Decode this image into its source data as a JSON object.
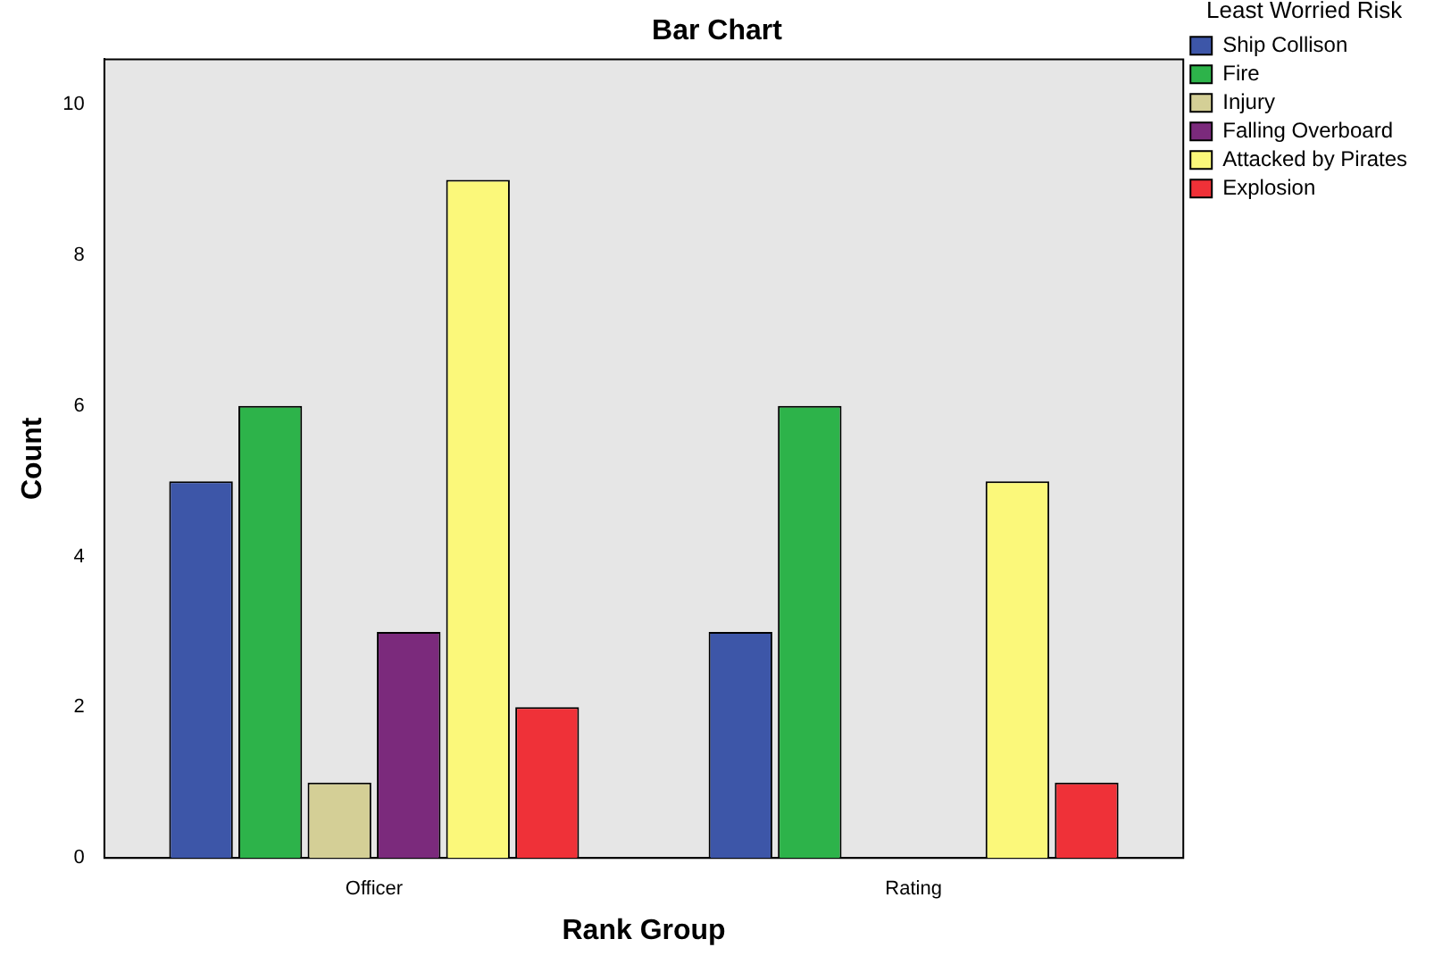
{
  "chart_data": {
    "type": "bar",
    "title": "Bar Chart",
    "xlabel": "Rank Group",
    "ylabel": "Count",
    "legend_title": "Least Worried Risk",
    "categories": [
      "Officer",
      "Rating"
    ],
    "series": [
      {
        "name": "Ship Collison",
        "color": "#3d56a8",
        "values": [
          5,
          3
        ]
      },
      {
        "name": "Fire",
        "color": "#2db34a",
        "values": [
          6,
          6
        ]
      },
      {
        "name": "Injury",
        "color": "#d4cf96",
        "values": [
          1,
          0
        ]
      },
      {
        "name": "Falling Overboard",
        "color": "#7b2a7c",
        "values": [
          3,
          0
        ]
      },
      {
        "name": "Attacked by Pirates",
        "color": "#fbf87a",
        "values": [
          9,
          5
        ]
      },
      {
        "name": "Explosion",
        "color": "#ef3138",
        "values": [
          2,
          1
        ]
      }
    ],
    "ylim": [
      0,
      10.6
    ],
    "yticks": [
      0,
      2,
      4,
      6,
      8,
      10
    ],
    "grid": false,
    "legend": "top right"
  }
}
